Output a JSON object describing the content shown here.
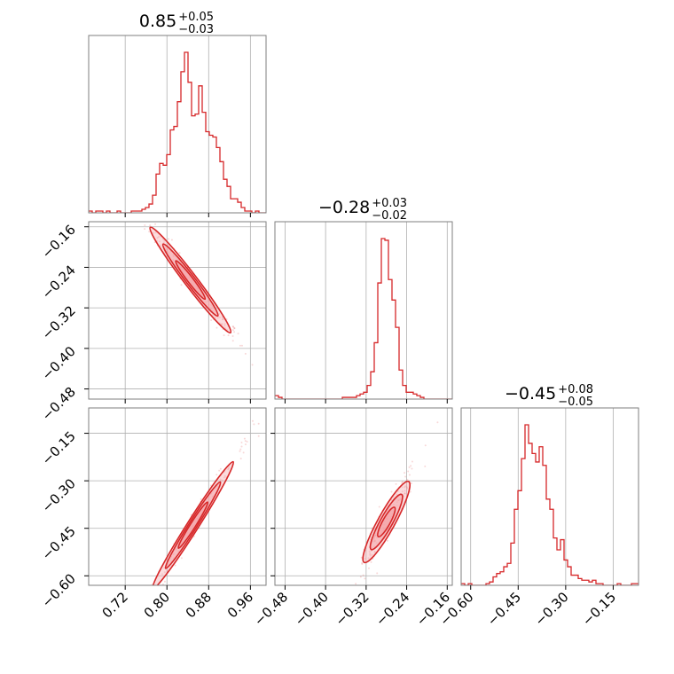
{
  "chart_data": {
    "type": "corner",
    "color": "#d62728",
    "fill_color": "#f4a3a8",
    "grid": true,
    "params": [
      {
        "title": {
          "median": "0.85",
          "plus": "+0.05",
          "minus": "−0.03"
        },
        "range": [
          0.65,
          0.99
        ],
        "ticks": [
          0.72,
          0.8,
          0.88,
          0.96
        ],
        "tick_labels": [
          "0.72",
          "0.80",
          "0.88",
          "0.96"
        ],
        "hist": [
          1,
          0,
          1,
          1,
          0,
          1,
          0,
          0,
          1,
          0,
          0,
          0,
          1,
          1,
          1,
          2,
          3,
          5,
          10,
          22,
          28,
          27,
          33,
          47,
          49,
          63,
          80,
          91,
          74,
          55,
          56,
          72,
          57,
          46,
          44,
          43,
          37,
          29,
          19,
          15,
          8,
          8,
          6,
          3,
          1,
          1,
          0,
          1,
          0,
          0
        ]
      },
      {
        "title": {
          "median": "−0.28",
          "plus": "+0.03",
          "minus": "−0.02"
        },
        "range": [
          -0.5,
          -0.15
        ],
        "ticks": [
          -0.48,
          -0.4,
          -0.32,
          -0.24,
          -0.16
        ],
        "tick_labels": [
          "−0.48",
          "−0.40",
          "−0.32",
          "−0.24",
          "−0.16"
        ],
        "hist": [
          2,
          1,
          0,
          0,
          0,
          0,
          0,
          0,
          0,
          0,
          0,
          0,
          0,
          0,
          0,
          0,
          0,
          0,
          0,
          1,
          1,
          1,
          1,
          2,
          3,
          4,
          8,
          16,
          33,
          68,
          94,
          93,
          70,
          58,
          42,
          17,
          8,
          4,
          4,
          3,
          2,
          1,
          0,
          0,
          0,
          0,
          0,
          0,
          0,
          0
        ]
      },
      {
        "title": {
          "median": "−0.45",
          "plus": "+0.08",
          "minus": "−0.05"
        },
        "range": [
          -0.63,
          -0.07
        ],
        "ticks": [
          -0.6,
          -0.45,
          -0.3,
          -0.15
        ],
        "tick_labels": [
          "−0.60",
          "−0.45",
          "−0.30",
          "−0.15"
        ],
        "hist": [
          1,
          0,
          1,
          0,
          0,
          0,
          0,
          1,
          2,
          5,
          7,
          8,
          11,
          13,
          25,
          45,
          56,
          75,
          95,
          84,
          78,
          73,
          82,
          71,
          51,
          45,
          28,
          21,
          27,
          15,
          11,
          6,
          6,
          4,
          3,
          3,
          2,
          3,
          1,
          1,
          0,
          0,
          0,
          0,
          1,
          0,
          0,
          0,
          1,
          1
        ]
      }
    ],
    "pairs": [
      {
        "row": 1,
        "col": 0,
        "slope": -1.35,
        "center": [
          0.845,
          -0.265
        ],
        "spread": [
          0.035,
          0.007
        ]
      },
      {
        "row": 2,
        "col": 0,
        "slope": 2.6,
        "center": [
          0.85,
          -0.44
        ],
        "spread": [
          0.035,
          0.01
        ]
      },
      {
        "row": 2,
        "col": 1,
        "slope": 2.9,
        "center": [
          -0.28,
          -0.43
        ],
        "spread": [
          0.02,
          0.015
        ]
      }
    ]
  }
}
